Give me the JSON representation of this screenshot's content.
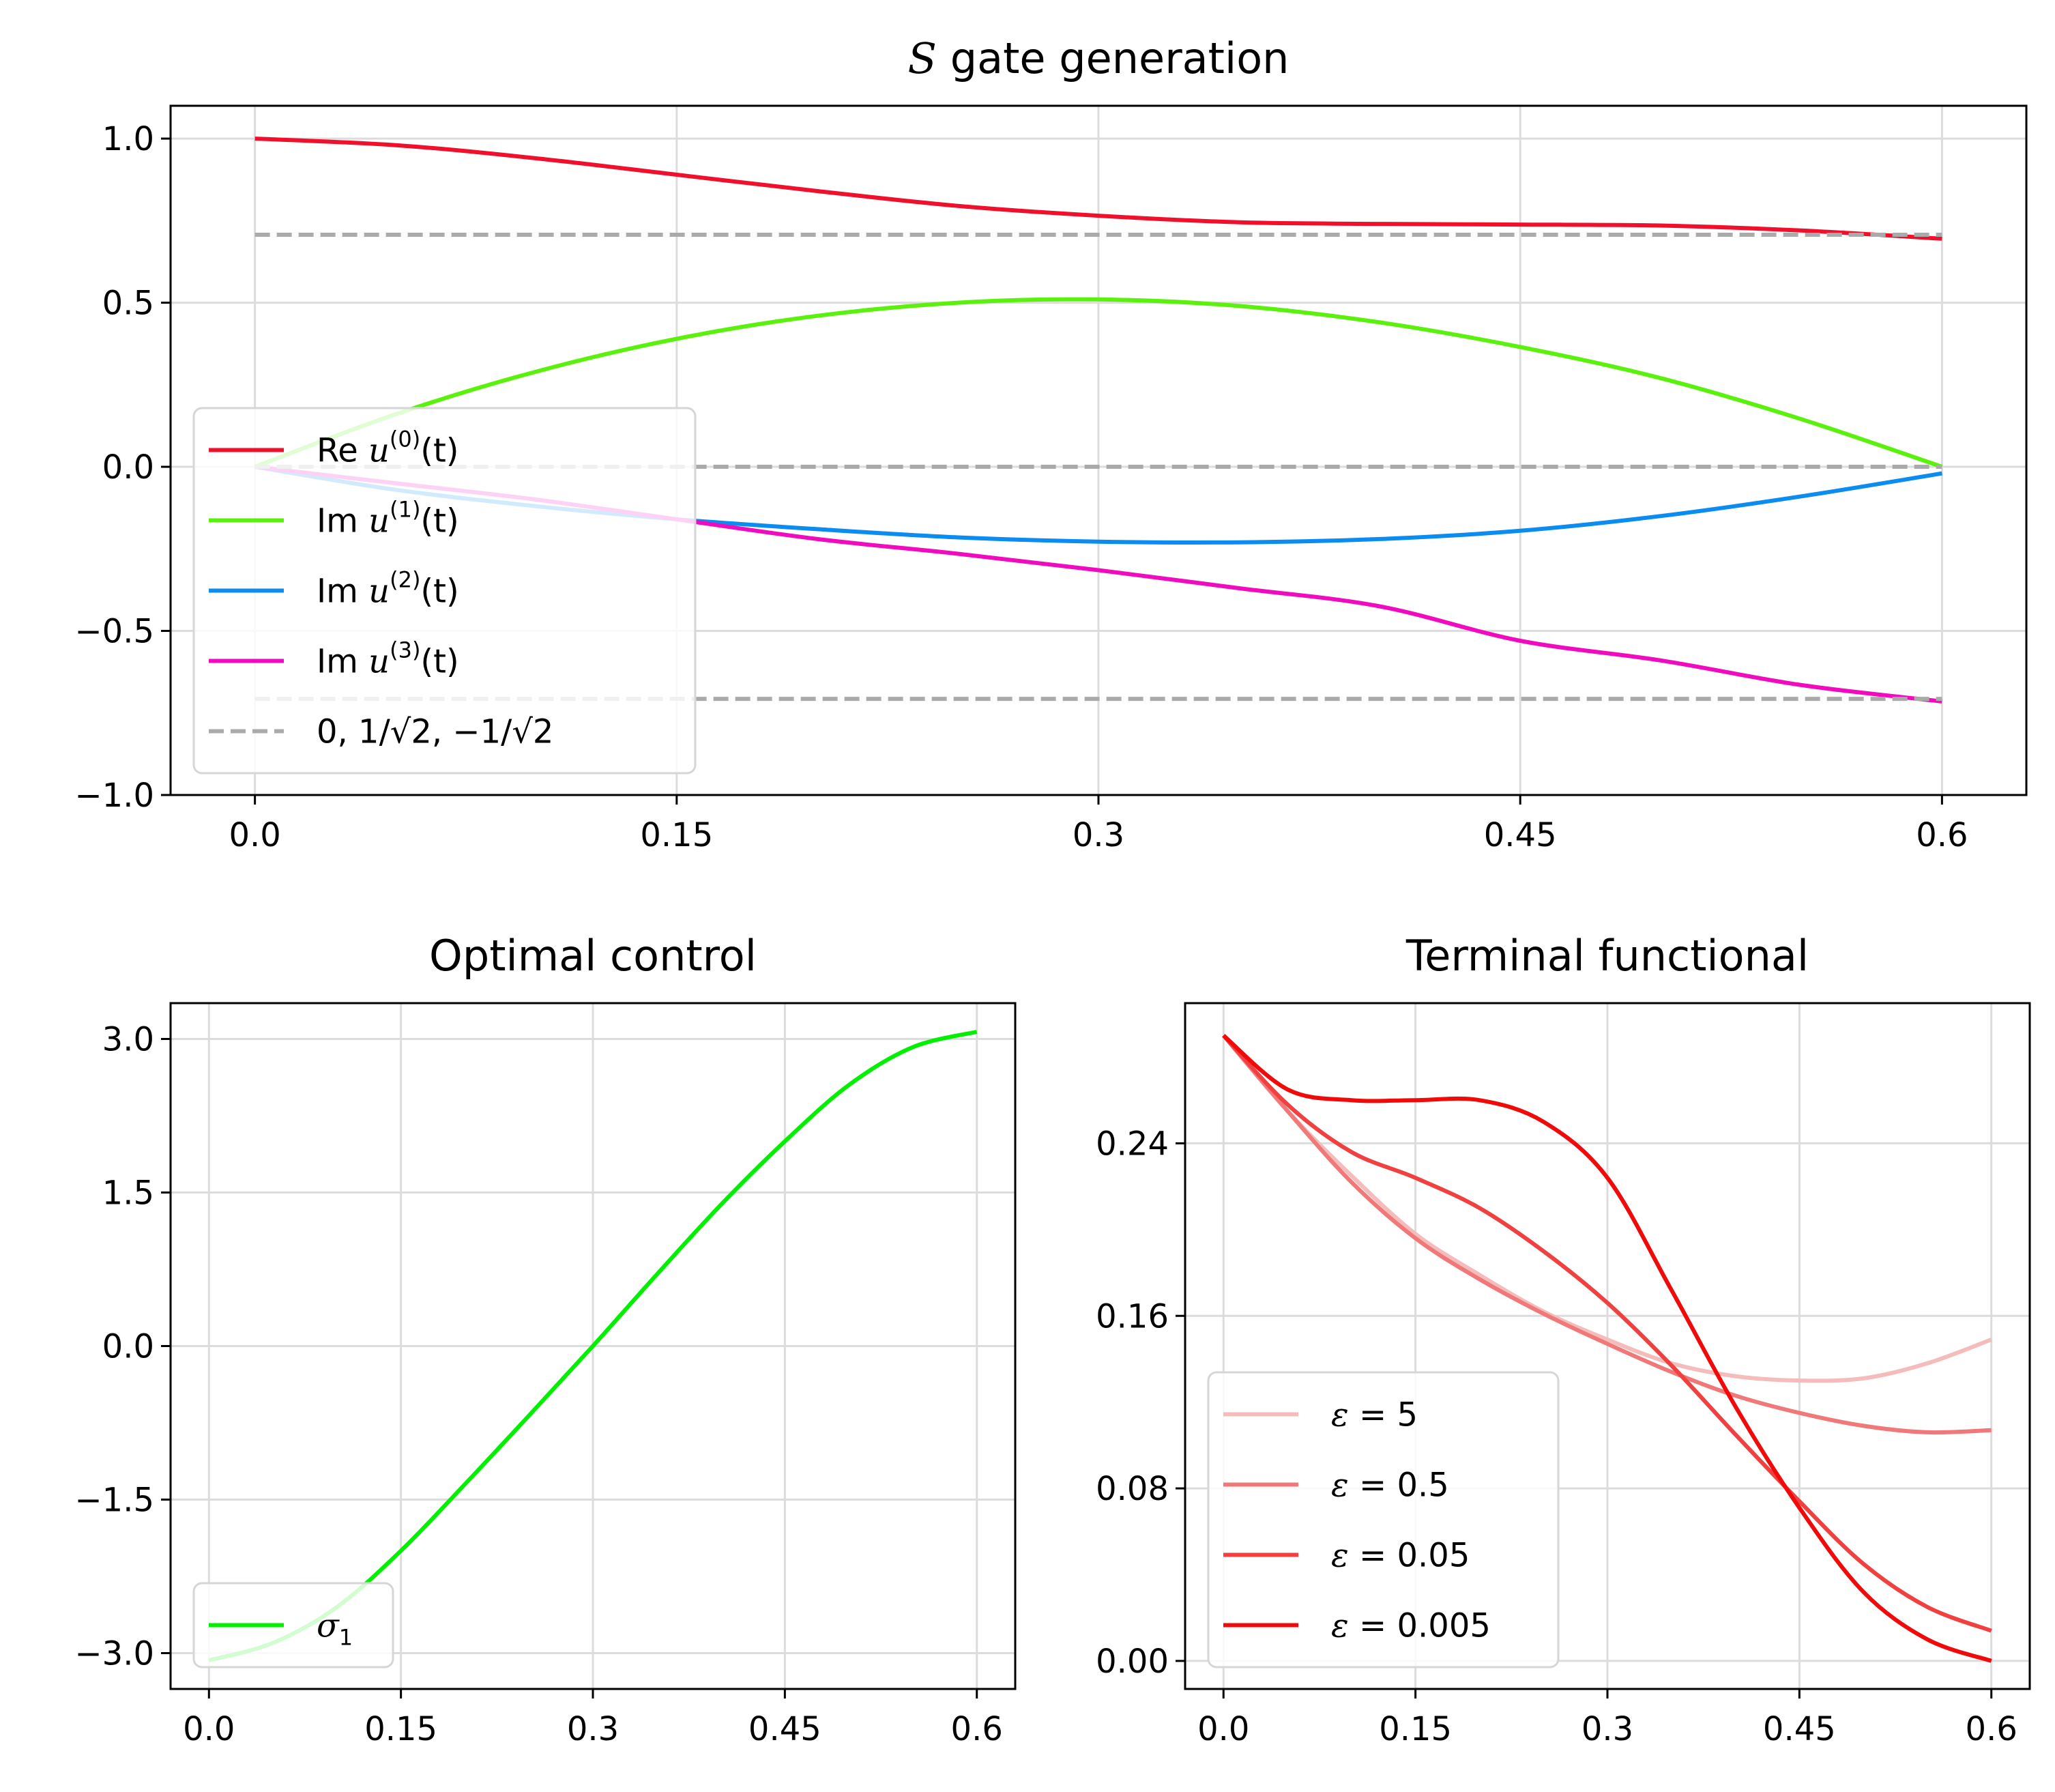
{
  "chart_data": [
    {
      "type": "line",
      "title_italic": "S",
      "title_rest": " gate generation",
      "xlim": [
        -0.03,
        0.63
      ],
      "ylim": [
        -1.0,
        1.1
      ],
      "xticks": [
        0.0,
        0.15,
        0.3,
        0.45,
        0.6
      ],
      "xtick_labels": [
        "0.0",
        "0.15",
        "0.3",
        "0.45",
        "0.6"
      ],
      "yticks": [
        -1.0,
        -0.5,
        0.0,
        0.5,
        1.0
      ],
      "ytick_labels": [
        "−1.0",
        "−0.5",
        "0.0",
        "0.5",
        "1.0"
      ],
      "grid": true,
      "legend_position": "lower-left",
      "x": [
        0.0,
        0.05,
        0.1,
        0.15,
        0.2,
        0.25,
        0.3,
        0.35,
        0.4,
        0.45,
        0.5,
        0.55,
        0.6
      ],
      "series": [
        {
          "name": "Re u(0)(t)",
          "legend": {
            "pre": "Re ",
            "var": "u",
            "sup": "(0)",
            "arg": "(t)"
          },
          "color": "#f0102c",
          "dash": false,
          "values": [
            1.0,
            0.98,
            0.94,
            0.89,
            0.84,
            0.795,
            0.765,
            0.745,
            0.74,
            0.738,
            0.735,
            0.72,
            0.695
          ]
        },
        {
          "name": "Im u(1)(t)",
          "legend": {
            "pre": "Im ",
            "var": "u",
            "sup": "(1)",
            "arg": "(t)"
          },
          "color": "#5af20c",
          "dash": false,
          "values": [
            0.0,
            0.16,
            0.29,
            0.39,
            0.46,
            0.5,
            0.51,
            0.49,
            0.44,
            0.365,
            0.27,
            0.145,
            0.0
          ]
        },
        {
          "name": "Im u(2)(t)",
          "legend": {
            "pre": "Im ",
            "var": "u",
            "sup": "(2)",
            "arg": "(t)"
          },
          "color": "#0a8cf0",
          "dash": false,
          "values": [
            0.0,
            -0.07,
            -0.12,
            -0.16,
            -0.19,
            -0.215,
            -0.228,
            -0.23,
            -0.22,
            -0.195,
            -0.15,
            -0.09,
            -0.02
          ]
        },
        {
          "name": "Im u(3)(t)",
          "legend": {
            "pre": "Im ",
            "var": "u",
            "sup": "(3)",
            "arg": "(t)"
          },
          "color": "#f20abf",
          "dash": false,
          "values": [
            0.0,
            -0.05,
            -0.1,
            -0.16,
            -0.22,
            -0.265,
            -0.315,
            -0.37,
            -0.425,
            -0.53,
            -0.59,
            -0.665,
            -0.715
          ]
        },
        {
          "name": "0, 1/√2, −1/√2",
          "legend": {
            "text": "0, 1/√2, −1/√2"
          },
          "color": "#aaaaaa",
          "dash": true,
          "hlines": [
            0.0,
            0.7071,
            -0.7071
          ],
          "x_range": [
            0.0,
            0.6
          ]
        }
      ]
    },
    {
      "type": "line",
      "title": "Optimal control",
      "xlim": [
        -0.03,
        0.63
      ],
      "ylim": [
        -3.35,
        3.35
      ],
      "xticks": [
        0.0,
        0.15,
        0.3,
        0.45,
        0.6
      ],
      "xtick_labels": [
        "0.0",
        "0.15",
        "0.3",
        "0.45",
        "0.6"
      ],
      "yticks": [
        -3.0,
        -1.5,
        0.0,
        1.5,
        3.0
      ],
      "ytick_labels": [
        "−3.0",
        "−1.5",
        "0.0",
        "1.5",
        "3.0"
      ],
      "grid": true,
      "legend_position": "lower-left",
      "x": [
        0.0,
        0.05,
        0.1,
        0.15,
        0.2,
        0.25,
        0.3,
        0.35,
        0.4,
        0.45,
        0.5,
        0.55,
        0.6
      ],
      "series": [
        {
          "name": "σ1",
          "legend": {
            "var": "σ",
            "sub": "1"
          },
          "color": "#00f000",
          "dash": false,
          "values": [
            -3.07,
            -2.9,
            -2.55,
            -2.0,
            -1.35,
            -0.68,
            0.0,
            0.7,
            1.38,
            2.0,
            2.55,
            2.92,
            3.07
          ]
        }
      ]
    },
    {
      "type": "line",
      "title": "Terminal functional",
      "xlim": [
        -0.03,
        0.63
      ],
      "ylim": [
        -0.013,
        0.305
      ],
      "xticks": [
        0.0,
        0.15,
        0.3,
        0.45,
        0.6
      ],
      "xtick_labels": [
        "0.0",
        "0.15",
        "0.3",
        "0.45",
        "0.6"
      ],
      "yticks": [
        0.0,
        0.08,
        0.16,
        0.24
      ],
      "ytick_labels": [
        "0.00",
        "0.08",
        "0.16",
        "0.24"
      ],
      "grid": true,
      "legend_position": "lower-left",
      "x": [
        0.0,
        0.05,
        0.1,
        0.15,
        0.2,
        0.25,
        0.3,
        0.35,
        0.4,
        0.45,
        0.5,
        0.55,
        0.6
      ],
      "series": [
        {
          "name": "ε = 5",
          "legend": {
            "var": "ε",
            "rest": " = 5"
          },
          "color": "#f5bcbc",
          "dash": false,
          "values": [
            0.29,
            0.255,
            0.225,
            0.198,
            0.179,
            0.162,
            0.149,
            0.138,
            0.132,
            0.13,
            0.131,
            0.138,
            0.149
          ]
        },
        {
          "name": "ε = 0.5",
          "legend": {
            "var": "ε",
            "rest": " = 0.5"
          },
          "color": "#f07878",
          "dash": false,
          "values": [
            0.29,
            0.255,
            0.222,
            0.196,
            0.177,
            0.161,
            0.147,
            0.134,
            0.123,
            0.115,
            0.109,
            0.106,
            0.107
          ]
        },
        {
          "name": "ε = 0.05",
          "legend": {
            "var": "ε",
            "rest": " = 0.05"
          },
          "color": "#f04040",
          "dash": false,
          "values": [
            0.29,
            0.258,
            0.236,
            0.224,
            0.21,
            0.19,
            0.166,
            0.137,
            0.105,
            0.074,
            0.045,
            0.025,
            0.014
          ]
        },
        {
          "name": "ε = 0.005",
          "legend": {
            "var": "ε",
            "rest": " = 0.005"
          },
          "color": "#f00a0a",
          "dash": false,
          "values": [
            0.29,
            0.265,
            0.26,
            0.26,
            0.26,
            0.25,
            0.224,
            0.172,
            0.118,
            0.071,
            0.032,
            0.01,
            0.0
          ]
        }
      ]
    }
  ]
}
